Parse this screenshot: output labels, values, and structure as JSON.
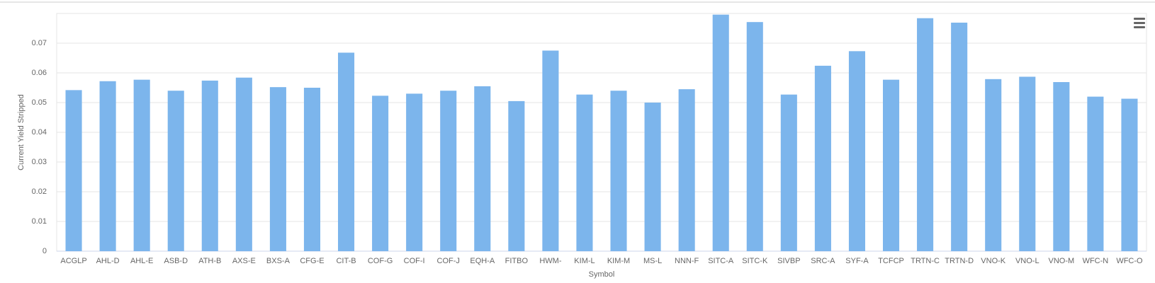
{
  "chart_data": {
    "type": "bar",
    "y_label": "Current Yield Stripped",
    "x_label": "Symbol",
    "categories": [
      "ACGLP",
      "AHL-D",
      "AHL-E",
      "ASB-D",
      "ATH-B",
      "AXS-E",
      "BXS-A",
      "CFG-E",
      "CIT-B",
      "COF-G",
      "COF-I",
      "COF-J",
      "EQH-A",
      "FITBO",
      "HWM-",
      "KIM-L",
      "KIM-M",
      "MS-L",
      "NNN-F",
      "SITC-A",
      "SITC-K",
      "SIVBP",
      "SRC-A",
      "SYF-A",
      "TCFCP",
      "TRTN-C",
      "TRTN-D",
      "VNO-K",
      "VNO-L",
      "VNO-M",
      "WFC-N",
      "WFC-O"
    ],
    "values": [
      0.0542,
      0.0572,
      0.0577,
      0.054,
      0.0574,
      0.0584,
      0.0552,
      0.055,
      0.0668,
      0.0523,
      0.053,
      0.054,
      0.0555,
      0.0505,
      0.0675,
      0.0527,
      0.054,
      0.05,
      0.0545,
      0.0796,
      0.0771,
      0.0527,
      0.0624,
      0.0673,
      0.0577,
      0.0784,
      0.0769,
      0.0579,
      0.0587,
      0.0569,
      0.052,
      0.0513
    ],
    "color": "#7cb5ec",
    "ylim": [
      0,
      0.08
    ],
    "yticks": [
      0,
      0.01,
      0.02,
      0.03,
      0.04,
      0.05,
      0.06,
      0.07
    ],
    "grid": true
  }
}
